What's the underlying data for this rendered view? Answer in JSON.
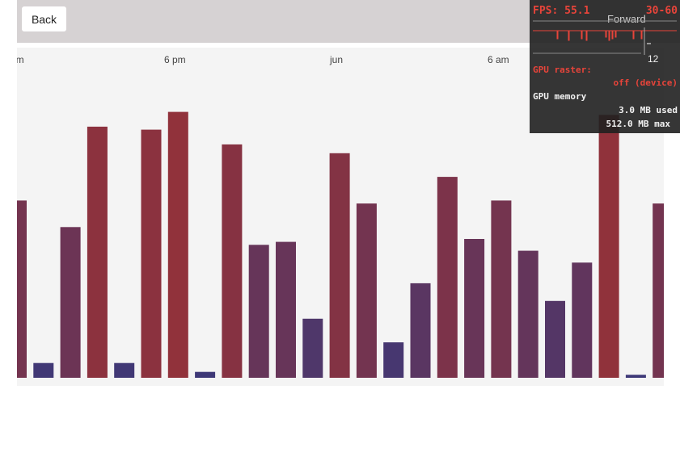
{
  "toolbar": {
    "back_label": "Back",
    "forward_label": "Forward"
  },
  "hud": {
    "fps": "FPS: 55.1",
    "range": "30-60",
    "raster_label": "GPU raster:",
    "raster_value": "off (device)",
    "memory_label": "GPU memory",
    "memory_used": "3.0 MB used",
    "memory_max": "512.0 MB max",
    "tick_12": "12"
  },
  "chart_data": {
    "type": "bar",
    "x_ticks": [
      "pm",
      "6 pm",
      "jun",
      "6 am"
    ],
    "ylim": [
      0,
      100
    ],
    "values": [
      60,
      5,
      51,
      85,
      5,
      84,
      90,
      2,
      79,
      45,
      46,
      20,
      76,
      59,
      12,
      32,
      68,
      47,
      60,
      43,
      26,
      39,
      89,
      1,
      59
    ],
    "colors": {
      "high": "#9a3134",
      "low": "#3c3878",
      "background": "#f4f4f4"
    }
  }
}
